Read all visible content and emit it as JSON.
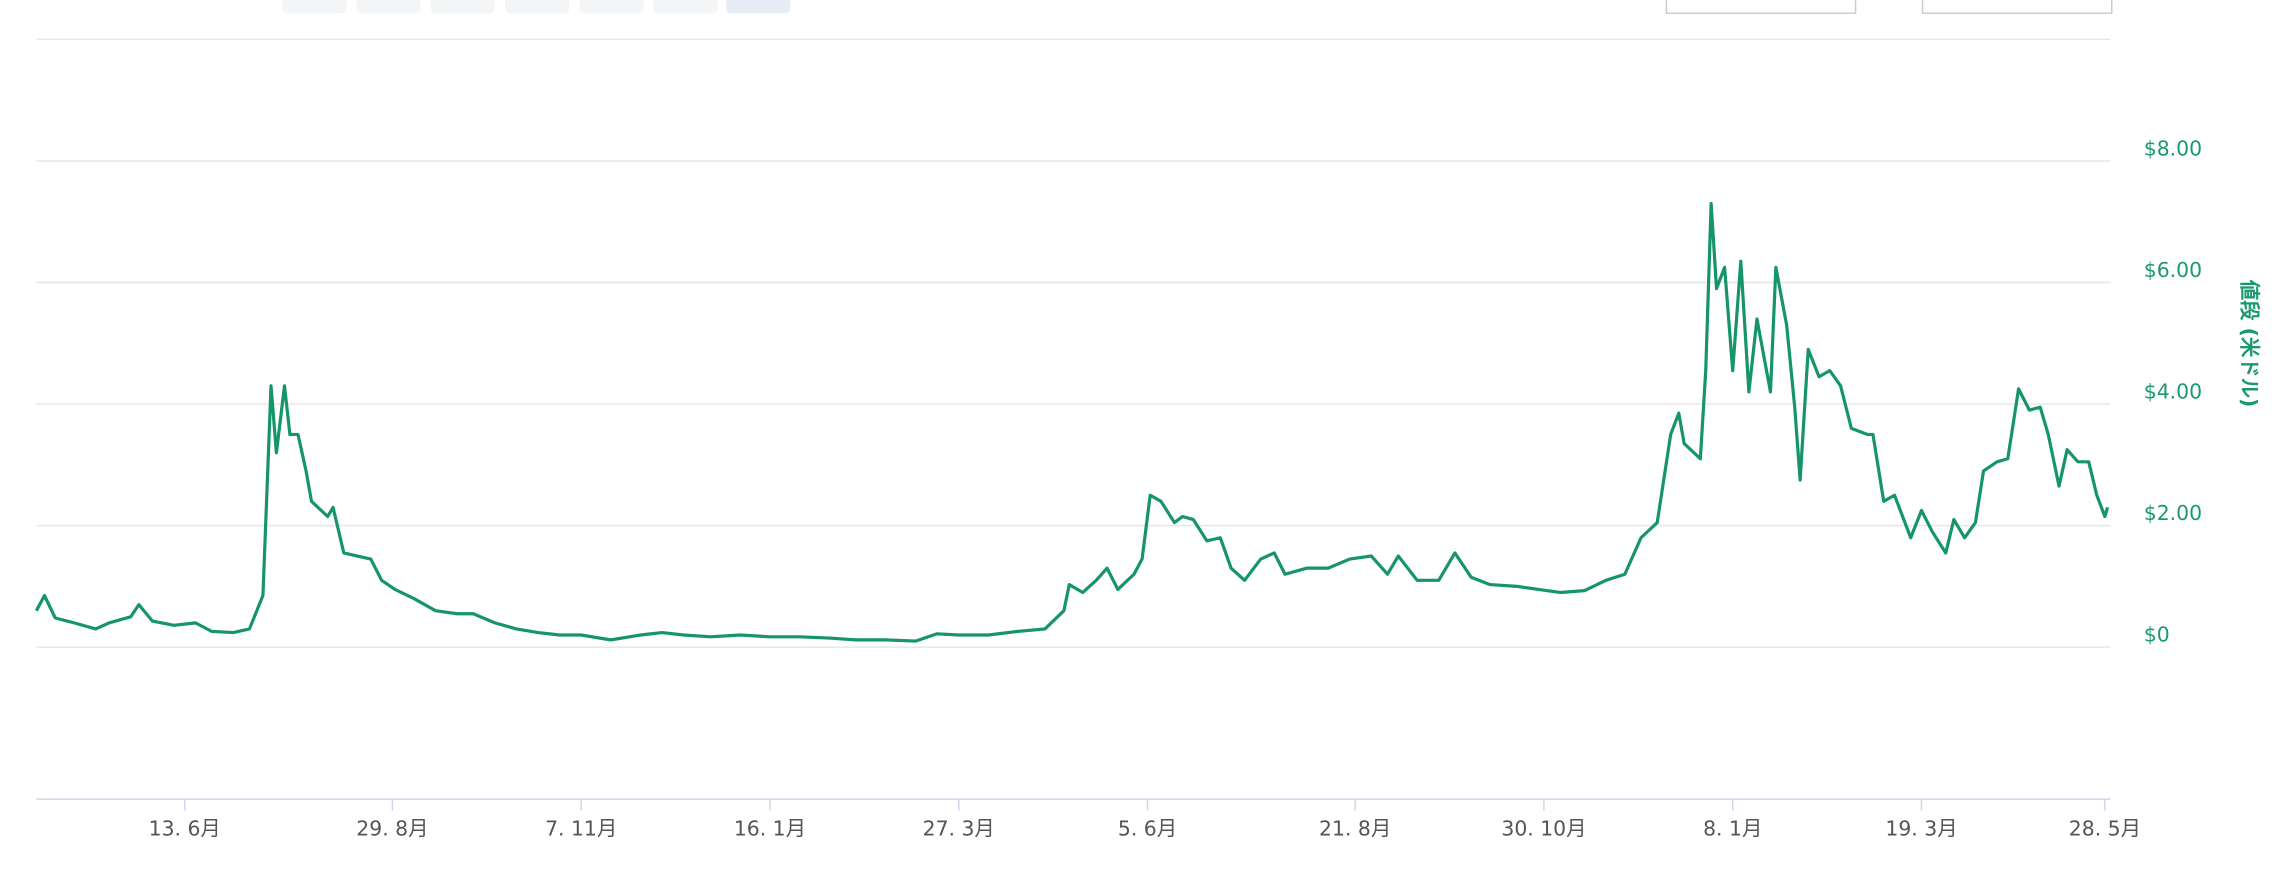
{
  "chart_data": {
    "type": "line",
    "y_axis_label": "値段 (米ドル)",
    "x": [
      -55,
      -52,
      -48,
      -41,
      -33,
      -28,
      -20,
      -17,
      -12,
      -4,
      4,
      10,
      18,
      24,
      29,
      32,
      34,
      37,
      39,
      42,
      45,
      47,
      53,
      55,
      59,
      64,
      69,
      73,
      78,
      85,
      93,
      101,
      107,
      115,
      123,
      131,
      139,
      147,
      158,
      169,
      177,
      185,
      195,
      206,
      217,
      228,
      239,
      249,
      260,
      271,
      279,
      287,
      298,
      309,
      319,
      326,
      328,
      333,
      338,
      342,
      346,
      352,
      355,
      358,
      362,
      367,
      370,
      374,
      379,
      384,
      388,
      393,
      399,
      404,
      408,
      416,
      424,
      432,
      440,
      446,
      450,
      457,
      465,
      471,
      477,
      484,
      494,
      502,
      510,
      519,
      527,
      534,
      540,
      546,
      551,
      554,
      556,
      562,
      564,
      566,
      568,
      571,
      574,
      577,
      580,
      583,
      588,
      590,
      594,
      597,
      599,
      602,
      606,
      610,
      614,
      618,
      624,
      626,
      630,
      634,
      640,
      644,
      648,
      653,
      656,
      660,
      664,
      667,
      672,
      676,
      680,
      684,
      688,
      691,
      695,
      698,
      702,
      706,
      709,
      712,
      713
    ],
    "series": [
      {
        "name": "値段",
        "color": "#16956a",
        "values": [
          0.6,
          0.85,
          0.48,
          0.4,
          0.3,
          0.4,
          0.5,
          0.7,
          0.43,
          0.36,
          0.4,
          0.26,
          0.24,
          0.3,
          0.85,
          4.3,
          3.2,
          4.3,
          3.5,
          3.5,
          2.9,
          2.4,
          2.15,
          2.3,
          1.55,
          1.5,
          1.45,
          1.1,
          0.95,
          0.8,
          0.6,
          0.55,
          0.55,
          0.4,
          0.3,
          0.24,
          0.2,
          0.2,
          0.12,
          0.2,
          0.24,
          0.2,
          0.17,
          0.2,
          0.17,
          0.17,
          0.15,
          0.12,
          0.12,
          0.1,
          0.22,
          0.2,
          0.2,
          0.26,
          0.3,
          0.6,
          1.03,
          0.9,
          1.1,
          1.3,
          0.95,
          1.2,
          1.45,
          2.5,
          2.4,
          2.05,
          2.15,
          2.1,
          1.75,
          1.8,
          1.3,
          1.1,
          1.45,
          1.55,
          1.2,
          1.3,
          1.3,
          1.45,
          1.5,
          1.2,
          1.5,
          1.1,
          1.1,
          1.55,
          1.15,
          1.03,
          1.0,
          0.95,
          0.9,
          0.93,
          1.1,
          1.2,
          1.8,
          2.05,
          3.5,
          3.85,
          3.35,
          3.1,
          4.55,
          7.3,
          5.9,
          6.25,
          4.55,
          6.35,
          4.2,
          5.4,
          4.2,
          6.25,
          5.3,
          3.95,
          2.75,
          4.9,
          4.45,
          4.55,
          4.3,
          3.6,
          3.5,
          3.5,
          2.4,
          2.5,
          1.8,
          2.25,
          1.9,
          1.55,
          2.1,
          1.8,
          2.05,
          2.9,
          3.05,
          3.1,
          4.25,
          3.9,
          3.95,
          3.5,
          2.65,
          3.25,
          3.05,
          3.05,
          2.5,
          2.15,
          2.3
        ]
      }
    ],
    "xlim": [
      -55,
      714
    ],
    "xticks": [
      {
        "value": 0,
        "label": "13. 6月"
      },
      {
        "value": 77,
        "label": "29. 8月"
      },
      {
        "value": 147,
        "label": "7. 11月"
      },
      {
        "value": 217,
        "label": "16. 1月"
      },
      {
        "value": 287,
        "label": "27. 3月"
      },
      {
        "value": 357,
        "label": "5. 6月"
      },
      {
        "value": 434,
        "label": "21. 8月"
      },
      {
        "value": 504,
        "label": "30. 10月"
      },
      {
        "value": 574,
        "label": "8. 1月"
      },
      {
        "value": 644,
        "label": "19. 3月"
      },
      {
        "value": 712,
        "label": "28. 5月"
      }
    ],
    "ylim": [
      -2.5,
      10
    ],
    "yticks": [
      {
        "value": 0,
        "label": "$0"
      },
      {
        "value": 2,
        "label": "$2.00"
      },
      {
        "value": 4,
        "label": "$4.00"
      },
      {
        "value": 6,
        "label": "$6.00"
      },
      {
        "value": 8,
        "label": "$8.00"
      }
    ],
    "grid": true
  }
}
